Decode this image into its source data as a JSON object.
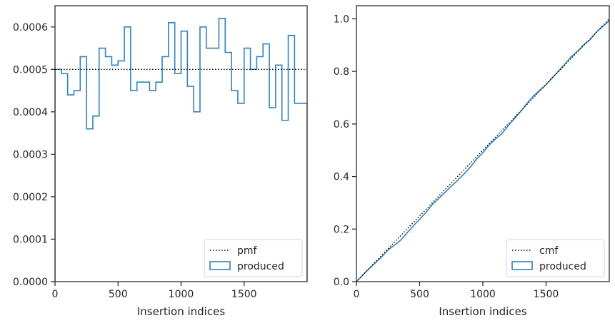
{
  "chart_data": [
    {
      "type": "line",
      "subtype": "step-histogram",
      "title": "",
      "xlabel": "Insertion indices",
      "ylabel": "",
      "xlim": [
        0,
        2000
      ],
      "ylim": [
        0,
        0.00065
      ],
      "xticks": [
        0,
        500,
        1000,
        1500
      ],
      "yticks": [
        0,
        0.0001,
        0.0002,
        0.0003,
        0.0004,
        0.0005,
        0.0006
      ],
      "ytick_labels": [
        "0.0000",
        "0.0001",
        "0.0002",
        "0.0003",
        "0.0004",
        "0.0005",
        "0.0006"
      ],
      "xtick_labels": [
        "0",
        "500",
        "1000",
        "1500"
      ],
      "grid": false,
      "legend": "lower-right",
      "series": [
        {
          "name": "pmf",
          "style": "dotted",
          "color": "#000000",
          "x": [
            0,
            2000
          ],
          "y": [
            0.0005,
            0.0005
          ]
        },
        {
          "name": "produced",
          "style": "step",
          "color": "#3182bd",
          "bin_edges": [
            0,
            50,
            100,
            150,
            200,
            250,
            300,
            350,
            400,
            450,
            500,
            550,
            600,
            650,
            700,
            750,
            800,
            850,
            900,
            950,
            1000,
            1050,
            1100,
            1150,
            1200,
            1250,
            1300,
            1350,
            1400,
            1450,
            1500,
            1550,
            1600,
            1650,
            1700,
            1750,
            1800,
            1850,
            1900,
            1950,
            2000
          ],
          "values": [
            0.0005,
            0.00049,
            0.00044,
            0.00045,
            0.00053,
            0.00036,
            0.00039,
            0.00055,
            0.00053,
            0.00051,
            0.00052,
            0.0006,
            0.00045,
            0.00047,
            0.00047,
            0.00045,
            0.00047,
            0.00053,
            0.00061,
            0.00049,
            0.00059,
            0.00046,
            0.0004,
            0.0006,
            0.00055,
            0.00055,
            0.00062,
            0.00054,
            0.00045,
            0.00042,
            0.00055,
            0.0005,
            0.00053,
            0.00056,
            0.00041,
            0.00051,
            0.00038,
            0.00058,
            0.00042,
            0.00042
          ]
        }
      ]
    },
    {
      "type": "line",
      "title": "",
      "xlabel": "Insertion indices",
      "ylabel": "",
      "xlim": [
        0,
        2000
      ],
      "ylim": [
        0,
        1.05
      ],
      "xticks": [
        0,
        500,
        1000,
        1500
      ],
      "yticks": [
        0,
        0.2,
        0.4,
        0.6,
        0.8,
        1.0
      ],
      "ytick_labels": [
        "0.0",
        "0.2",
        "0.4",
        "0.6",
        "0.8",
        "1.0"
      ],
      "xtick_labels": [
        "0",
        "500",
        "1000",
        "1500"
      ],
      "grid": false,
      "legend": "lower-right",
      "series": [
        {
          "name": "cmf",
          "style": "dotted",
          "color": "#000000",
          "x": [
            0,
            2000
          ],
          "y": [
            0,
            1.0
          ]
        },
        {
          "name": "produced",
          "style": "solid",
          "color": "#3182bd",
          "x": [
            0,
            50,
            100,
            150,
            200,
            250,
            300,
            350,
            400,
            450,
            500,
            550,
            600,
            650,
            700,
            750,
            800,
            850,
            900,
            950,
            1000,
            1050,
            1100,
            1150,
            1200,
            1250,
            1300,
            1350,
            1400,
            1450,
            1500,
            1550,
            1600,
            1650,
            1700,
            1750,
            1800,
            1850,
            1900,
            1950,
            2000
          ],
          "y": [
            0,
            0.025,
            0.0495,
            0.0715,
            0.094,
            0.1205,
            0.1385,
            0.158,
            0.1855,
            0.212,
            0.2375,
            0.2635,
            0.2935,
            0.316,
            0.3395,
            0.363,
            0.3855,
            0.409,
            0.4355,
            0.466,
            0.4905,
            0.52,
            0.543,
            0.563,
            0.593,
            0.6205,
            0.648,
            0.679,
            0.706,
            0.7285,
            0.7495,
            0.777,
            0.802,
            0.8285,
            0.8565,
            0.877,
            0.9025,
            0.9215,
            0.9505,
            0.9715,
            0.9925
          ]
        }
      ]
    }
  ]
}
